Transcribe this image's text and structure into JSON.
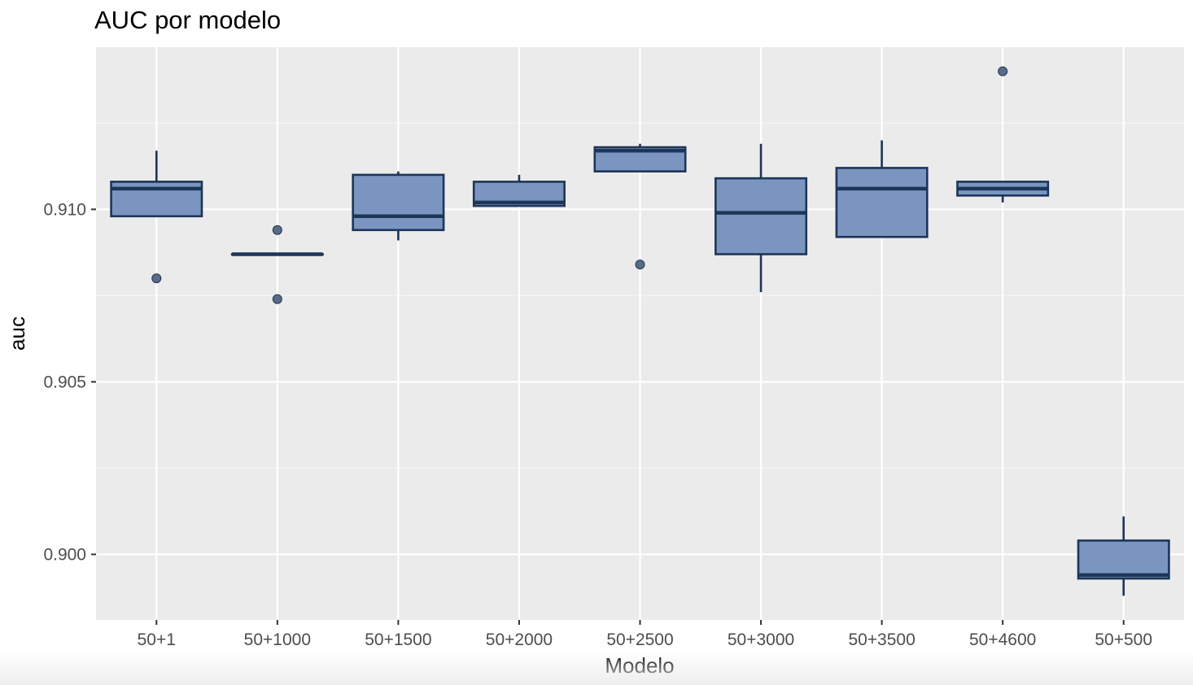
{
  "chart_data": {
    "type": "boxplot",
    "title": "AUC por modelo",
    "xlabel": "Modelo",
    "ylabel": "auc",
    "ylim": [
      0.8981,
      0.9147
    ],
    "yticks": [
      0.9,
      0.905,
      0.91
    ],
    "ytick_labels": [
      "0.900",
      "0.905",
      "0.910"
    ],
    "grid": true,
    "legend": "none",
    "categories": [
      "50+1",
      "50+1000",
      "50+1500",
      "50+2000",
      "50+2500",
      "50+3000",
      "50+3500",
      "50+4600",
      "50+500"
    ],
    "boxes": [
      {
        "category": "50+1",
        "whisker_low": 0.9098,
        "q1": 0.9098,
        "median": 0.9106,
        "q3": 0.9108,
        "whisker_high": 0.9117,
        "outliers": [
          0.908
        ]
      },
      {
        "category": "50+1000",
        "whisker_low": 0.9087,
        "q1": 0.9087,
        "median": 0.9087,
        "q3": 0.9087,
        "whisker_high": 0.9087,
        "outliers": [
          0.9094,
          0.9074
        ]
      },
      {
        "category": "50+1500",
        "whisker_low": 0.9091,
        "q1": 0.9094,
        "median": 0.9098,
        "q3": 0.911,
        "whisker_high": 0.9111,
        "outliers": []
      },
      {
        "category": "50+2000",
        "whisker_low": 0.9101,
        "q1": 0.9101,
        "median": 0.9102,
        "q3": 0.9108,
        "whisker_high": 0.911,
        "outliers": []
      },
      {
        "category": "50+2500",
        "whisker_low": 0.9111,
        "q1": 0.9111,
        "median": 0.9117,
        "q3": 0.9118,
        "whisker_high": 0.9119,
        "outliers": [
          0.9084
        ]
      },
      {
        "category": "50+3000",
        "whisker_low": 0.9076,
        "q1": 0.9087,
        "median": 0.9099,
        "q3": 0.9109,
        "whisker_high": 0.9119,
        "outliers": []
      },
      {
        "category": "50+3500",
        "whisker_low": 0.9092,
        "q1": 0.9092,
        "median": 0.9106,
        "q3": 0.9112,
        "whisker_high": 0.912,
        "outliers": []
      },
      {
        "category": "50+4600",
        "whisker_low": 0.9102,
        "q1": 0.9104,
        "median": 0.9106,
        "q3": 0.9108,
        "whisker_high": 0.9108,
        "outliers": [
          0.914
        ]
      },
      {
        "category": "50+500",
        "whisker_low": 0.8988,
        "q1": 0.8993,
        "median": 0.8994,
        "q3": 0.9004,
        "whisker_high": 0.9011,
        "outliers": []
      }
    ],
    "colors": {
      "panel_background": "#ebebeb",
      "grid_major": "#ffffff",
      "grid_minor": "#f5f5f5",
      "box_fill": "#7a96c0",
      "box_stroke": "#1d3557",
      "outlier": "#5a6b85"
    }
  }
}
